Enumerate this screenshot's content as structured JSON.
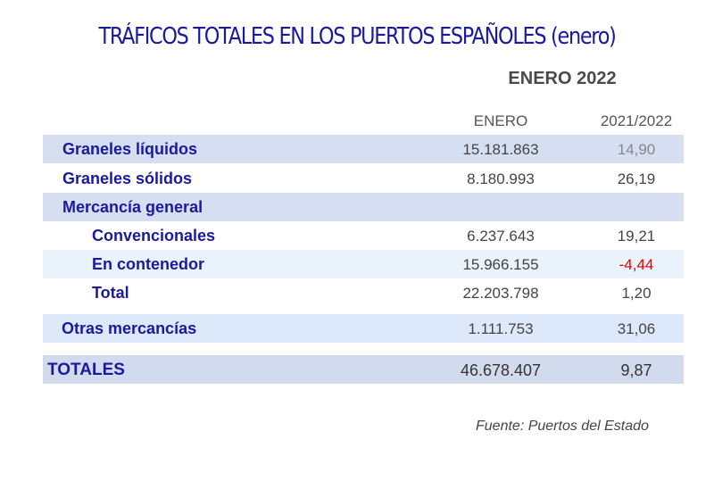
{
  "title": "TRÁFICOS TOTALES EN LOS PUERTOS ESPAÑOLES (enero)",
  "subtitle": "ENERO 2022",
  "columns": [
    "ENERO",
    "2021/2022"
  ],
  "rows": [
    {
      "label": "Graneles líquidos",
      "value": "15.181.863",
      "change": "14,90"
    },
    {
      "label": "Graneles sólidos",
      "value": "8.180.993",
      "change": "26,19"
    },
    {
      "label": "Mercancía general",
      "value": "",
      "change": ""
    },
    {
      "label": "Convencionales",
      "value": "6.237.643",
      "change": "19,21"
    },
    {
      "label": "En contenedor",
      "value": "15.966.155",
      "change": "-4,44"
    },
    {
      "label": "Total",
      "value": "22.203.798",
      "change": "1,20"
    },
    {
      "label": "Otras mercancías",
      "value": "1.111.753",
      "change": "31,06"
    },
    {
      "label": "TOTALES",
      "value": "46.678.407",
      "change": "9,87"
    }
  ],
  "source": "Fuente: Puertos del Estado",
  "colors": {
    "title": "#1a1a9c",
    "negative": "#e00000"
  }
}
